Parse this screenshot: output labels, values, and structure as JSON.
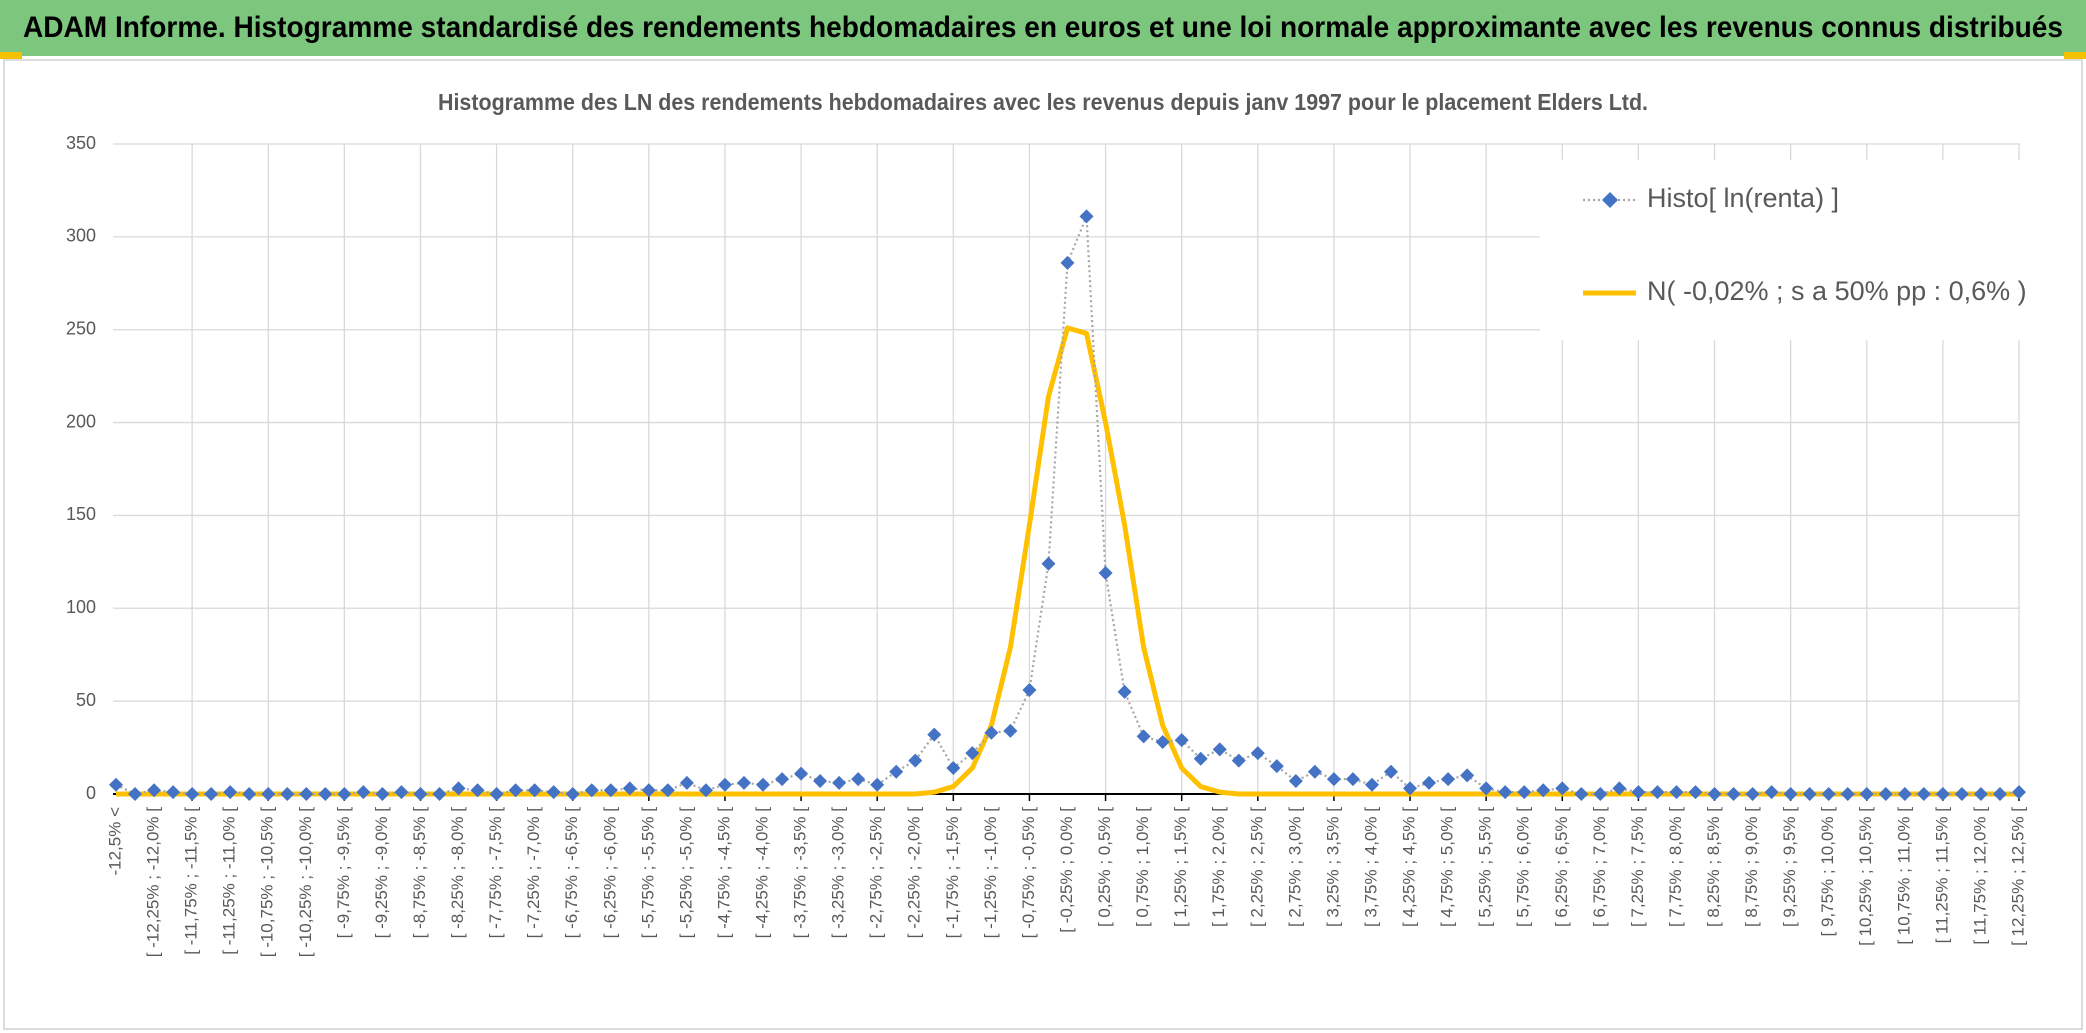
{
  "header": {
    "title": "ADAM Informe. Histogramme standardisé des rendements hebdomadaires en euros et une loi normale approximante avec les revenus connus distribués"
  },
  "chart_data": {
    "type": "line",
    "title": "Histogramme des LN des rendements hebdomadaires avec les revenus depuis janv 1997 pour le placement Elders Ltd.",
    "categories": [
      "-12,5% <",
      null,
      "[ -12,25% ; -12,0% [",
      null,
      "[ -11,75% ; -11,5% [",
      null,
      "[ -11,25% ; -11,0% [",
      null,
      "[ -10,75% ; -10,5% [",
      null,
      "[ -10,25% ; -10,0% [",
      null,
      "[ -9,75% ; -9,5% [",
      null,
      "[ -9,25% ; -9,0% [",
      null,
      "[ -8,75% ; -8,5% [",
      null,
      "[ -8,25% ; -8,0% [",
      null,
      "[ -7,75% ; -7,5% [",
      null,
      "[ -7,25% ; -7,0% [",
      null,
      "[ -6,75% ; -6,5% [",
      null,
      "[ -6,25% ; -6,0% [",
      null,
      "[ -5,75% ; -5,5% [",
      null,
      "[ -5,25% ; -5,0% [",
      null,
      "[ -4,75% ; -4,5% [",
      null,
      "[ -4,25% ; -4,0% [",
      null,
      "[ -3,75% ; -3,5% [",
      null,
      "[ -3,25% ; -3,0% [",
      null,
      "[ -2,75% ; -2,5% [",
      null,
      "[ -2,25% ; -2,0% [",
      null,
      "[ -1,75% ; -1,5% [",
      null,
      "[ -1,25% ; -1,0% [",
      null,
      "[ -0,75% ; -0,5% [",
      null,
      "[ -0,25% ; 0,0% [",
      null,
      "[ 0,25% ; 0,5% [",
      null,
      "[ 0,75% ; 1,0% [",
      null,
      "[ 1,25% ; 1,5% [",
      null,
      "[ 1,75% ; 2,0% [",
      null,
      "[ 2,25% ; 2,5% [",
      null,
      "[ 2,75% ; 3,0% [",
      null,
      "[ 3,25% ; 3,5% [",
      null,
      "[ 3,75% ; 4,0% [",
      null,
      "[ 4,25% ; 4,5% [",
      null,
      "[ 4,75% ; 5,0% [",
      null,
      "[ 5,25% ; 5,5% [",
      null,
      "[ 5,75% ; 6,0% [",
      null,
      "[ 6,25% ; 6,5% [",
      null,
      "[ 6,75% ; 7,0% [",
      null,
      "[ 7,25% ; 7,5% [",
      null,
      "[ 7,75% ; 8,0% [",
      null,
      "[ 8,25% ; 8,5% [",
      null,
      "[ 8,75% ; 9,0% [",
      null,
      "[ 9,25% ; 9,5% [",
      null,
      "[ 9,75% ; 10,0% [",
      null,
      "[ 10,25% ; 10,5% [",
      null,
      "[ 10,75% ; 11,0% [",
      null,
      "[ 11,25% ; 11,5% [",
      null,
      "[ 11,75% ; 12,0% [",
      null,
      "[ 12,25% ; 12,5% ["
    ],
    "series": [
      {
        "name": "Histo[ ln(renta) ]",
        "color": "#4472c4",
        "values": [
          5,
          0,
          2,
          1,
          0,
          0,
          1,
          0,
          0,
          0,
          0,
          0,
          0,
          1,
          0,
          1,
          0,
          0,
          3,
          2,
          0,
          2,
          2,
          1,
          0,
          2,
          2,
          3,
          2,
          2,
          6,
          2,
          5,
          6,
          5,
          8,
          11,
          7,
          6,
          8,
          5,
          12,
          18,
          32,
          14,
          22,
          33,
          34,
          56,
          124,
          286,
          311,
          119,
          55,
          31,
          28,
          29,
          19,
          24,
          18,
          22,
          15,
          7,
          12,
          8,
          8,
          5,
          12,
          3,
          6,
          8,
          10,
          3,
          1,
          1,
          2,
          3,
          0,
          0,
          3,
          1,
          1,
          1,
          1,
          0,
          0,
          0,
          1,
          0,
          0,
          0,
          0,
          0,
          0,
          0,
          0,
          0,
          0,
          0,
          0,
          1
        ]
      },
      {
        "name": "N( -0,02% ; s a 50% pp : 0,6% )",
        "color": "#ffc000",
        "values": [
          0,
          0,
          0,
          0,
          0,
          0,
          0,
          0,
          0,
          0,
          0,
          0,
          0,
          0,
          0,
          0,
          0,
          0,
          0,
          0,
          0,
          0,
          0,
          0,
          0,
          0,
          0,
          0,
          0,
          0,
          0,
          0,
          0,
          0,
          0,
          0,
          0,
          0,
          0,
          0,
          0,
          0,
          0,
          1,
          4,
          14,
          37,
          79,
          145,
          214,
          251,
          248,
          200,
          145,
          79,
          37,
          14,
          4,
          1,
          0,
          0,
          0,
          0,
          0,
          0,
          0,
          0,
          0,
          0,
          0,
          0,
          0,
          0,
          0,
          0,
          0,
          0,
          0,
          0,
          0,
          0,
          0,
          0,
          0,
          0,
          0,
          0,
          0,
          0,
          0,
          0,
          0,
          0,
          0,
          0,
          0,
          0,
          0,
          0,
          0,
          0
        ]
      }
    ],
    "ylim": [
      0,
      350
    ],
    "yticks": [
      0,
      50,
      100,
      150,
      200,
      250,
      300,
      350
    ],
    "grid": true
  }
}
